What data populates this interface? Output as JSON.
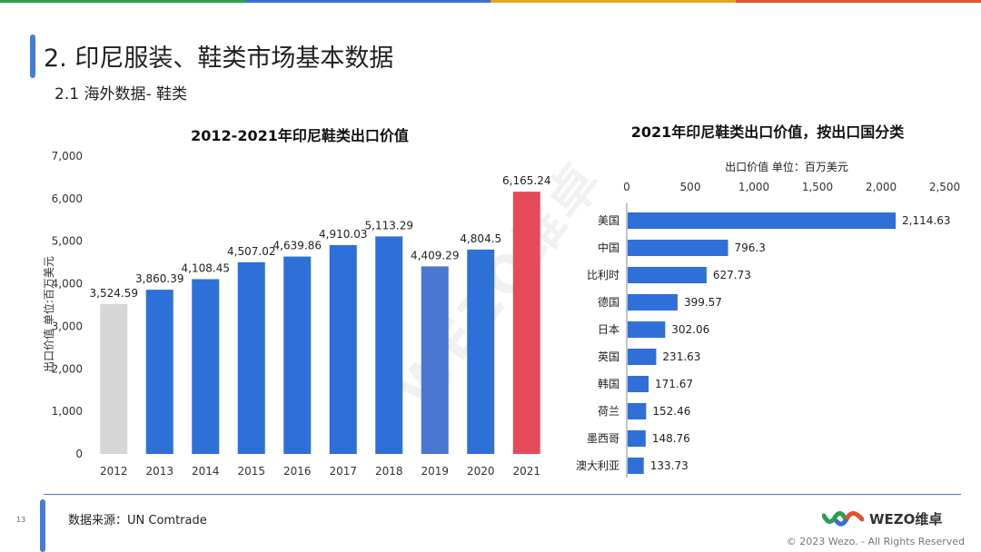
{
  "colors": {
    "accent": "#4a7bd6",
    "bar_blue": "#2f6fd8",
    "bar_gray": "#d6d6d6",
    "bar_red": "#e44a5a",
    "bar_2019": "#4878d0",
    "topbar": [
      "#2e9e4f",
      "#3a6fd8",
      "#e0a81c",
      "#e0542c"
    ]
  },
  "header": {
    "title": "2. 印尼服装、鞋类市场基本数据",
    "subtitle": "2.1 海外数据- 鞋类"
  },
  "watermark": "WEZO维卓",
  "footer": {
    "source": "数据来源：UN Comtrade",
    "page_number": "13",
    "logo_text": "WEZO维卓",
    "copyright": "© 2023 Wezo. - All Rights Reserved"
  },
  "chart_data": [
    {
      "type": "bar",
      "title": "2012-2021年印尼鞋类出口价值",
      "xlabel": "",
      "ylabel": "出口价值 单位:百万美元",
      "ylim": [
        0,
        7000
      ],
      "yticks": [
        0,
        1000,
        2000,
        3000,
        4000,
        5000,
        6000,
        7000
      ],
      "ytick_labels": [
        "0",
        "1,000",
        "2,000",
        "3,000",
        "4,000",
        "5,000",
        "6,000",
        "7,000"
      ],
      "categories": [
        "2012",
        "2013",
        "2014",
        "2015",
        "2016",
        "2017",
        "2018",
        "2019",
        "2020",
        "2021"
      ],
      "values": [
        3524.59,
        3860.39,
        4108.45,
        4507.02,
        4639.86,
        4910.03,
        5113.29,
        4409.29,
        4804.5,
        6165.24
      ],
      "value_labels": [
        "3,524.59",
        "3,860.39",
        "4,108.45",
        "4,507.02",
        "4,639.86",
        "4,910.03",
        "5,113.29",
        "4,409.29",
        "4,804.5",
        "6,165.24"
      ],
      "bar_colors": [
        "#d6d6d6",
        "#2f6fd8",
        "#2f6fd8",
        "#2f6fd8",
        "#2f6fd8",
        "#2f6fd8",
        "#2f6fd8",
        "#4878d0",
        "#2f6fd8",
        "#e44a5a"
      ],
      "grid": false
    },
    {
      "type": "bar",
      "orientation": "horizontal",
      "title": "2021年印尼鞋类出口价值，按出口国分类",
      "xlabel": "出口价值 单位：百万美元",
      "ylabel": "",
      "xlim": [
        0,
        2500
      ],
      "xticks": [
        0,
        500,
        1000,
        1500,
        2000,
        2500
      ],
      "xtick_labels": [
        "0",
        "500",
        "1,000",
        "1,500",
        "2,000",
        "2,500"
      ],
      "categories": [
        "美国",
        "中国",
        "比利时",
        "德国",
        "日本",
        "英国",
        "韩国",
        "荷兰",
        "墨西哥",
        "澳大利亚"
      ],
      "values": [
        2114.63,
        796.3,
        627.73,
        399.57,
        302.06,
        231.63,
        171.67,
        152.46,
        148.76,
        133.73
      ],
      "value_labels": [
        "2,114.63",
        "796.3",
        "627.73",
        "399.57",
        "302.06",
        "231.63",
        "171.67",
        "152.46",
        "148.76",
        "133.73"
      ],
      "bar_color": "#2f6fd8",
      "grid": false
    }
  ]
}
